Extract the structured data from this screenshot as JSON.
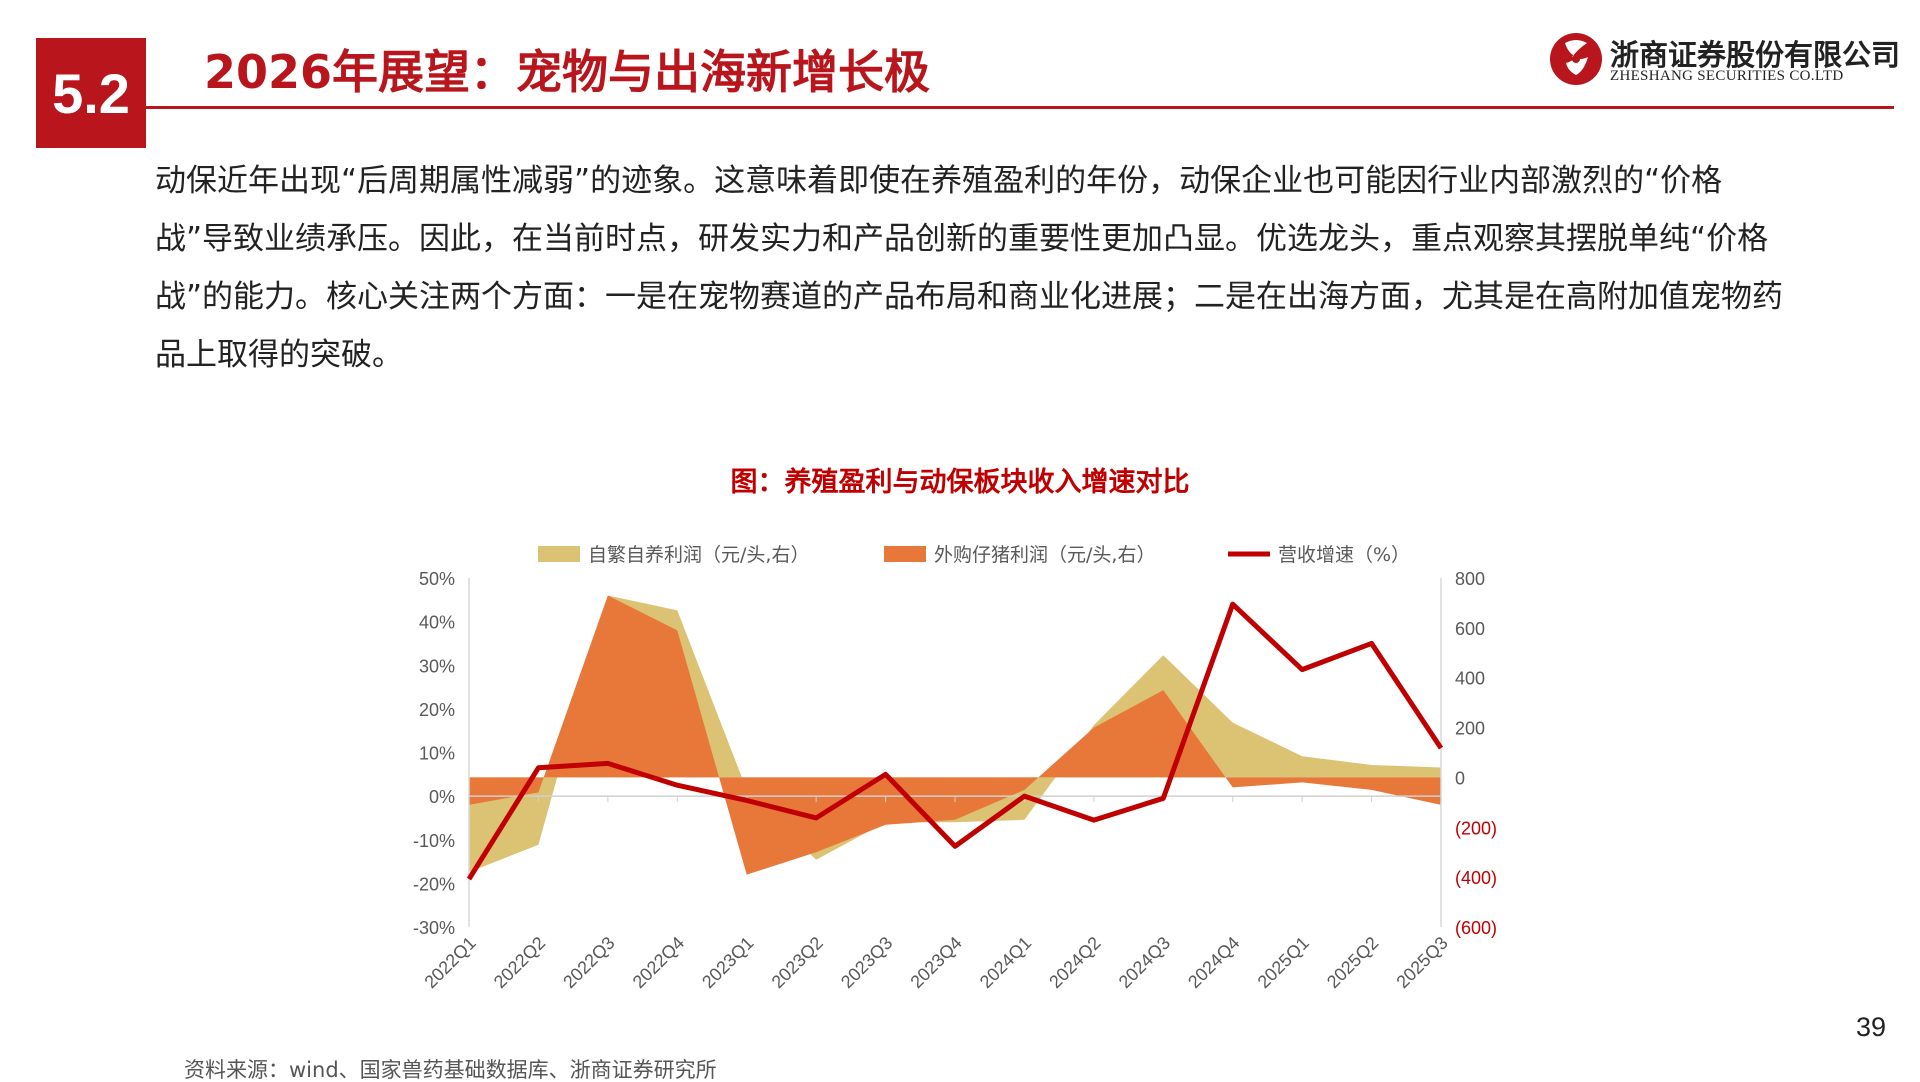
{
  "header": {
    "section_number": "5.2",
    "title": "2026年展望：宠物与出海新增长极",
    "logo_name": "浙商证券股份有限公司",
    "logo_en": "ZHESHANG SECURITIES CO.LTD"
  },
  "body": {
    "paragraph": "动保近年出现“后周期属性减弱”的迹象。这意味着即使在养殖盈利的年份，动保企业也可能因行业内部激烈的“价格战”导致业绩承压。因此，在当前时点，研发实力和产品创新的重要性更加凸显。优选龙头，重点观察其摆脱单纯“价格战”的能力。核心关注两个方面：一是在宠物赛道的产品布局和商业化进展；二是在出海方面，尤其是在高附加值宠物药品上取得的突破。"
  },
  "chart_title": "图：养殖盈利与动保板块收入增速对比",
  "source": "资料来源：wind、国家兽药基础数据库、浙商证券研究所",
  "page_number": "39",
  "colors": {
    "brand_red": "#b8161c",
    "self_breed": "#dcc273",
    "purchased_piglet": "#e8773a",
    "revenue_line": "#c00000",
    "negative_axis_text": "#c00000"
  },
  "chart_data": {
    "type": "area",
    "categories": [
      "2022Q1",
      "2022Q2",
      "2022Q3",
      "2022Q4",
      "2023Q1",
      "2023Q2",
      "2023Q3",
      "2023Q4",
      "2024Q1",
      "2024Q2",
      "2024Q3",
      "2024Q4",
      "2025Q1",
      "2025Q2",
      "2025Q3"
    ],
    "left_axis": {
      "ylim": [
        -0.3,
        0.5
      ],
      "tick_labels": [
        "50%",
        "40%",
        "30%",
        "20%",
        "10%",
        "0%",
        "-10%",
        "-20%",
        "-30%"
      ]
    },
    "right_axis": {
      "ylim": [
        -600,
        800
      ],
      "tick_labels": [
        "800",
        "600",
        "400",
        "200",
        "0",
        "(200)",
        "(400)",
        "(600)"
      ]
    },
    "series": [
      {
        "name": "自繁自养利润（元/头,右）",
        "type": "area",
        "axis": "right",
        "values": [
          -380,
          -270,
          730,
          670,
          -50,
          -330,
          -180,
          -180,
          -170,
          210,
          490,
          220,
          85,
          50,
          40
        ]
      },
      {
        "name": "外购仔猪利润（元/头,右）",
        "type": "area",
        "axis": "right",
        "values": [
          -110,
          -60,
          730,
          590,
          -390,
          -300,
          -190,
          -170,
          -50,
          200,
          350,
          -40,
          -20,
          -50,
          -110
        ]
      },
      {
        "name": "营收增速（%）",
        "type": "line",
        "axis": "left",
        "values": [
          -0.19,
          0.065,
          0.075,
          0.025,
          -0.01,
          -0.05,
          0.05,
          -0.115,
          0.0,
          -0.055,
          -0.005,
          0.44,
          0.29,
          0.35,
          0.11
        ]
      }
    ],
    "legend_position": "top",
    "grid": false
  }
}
